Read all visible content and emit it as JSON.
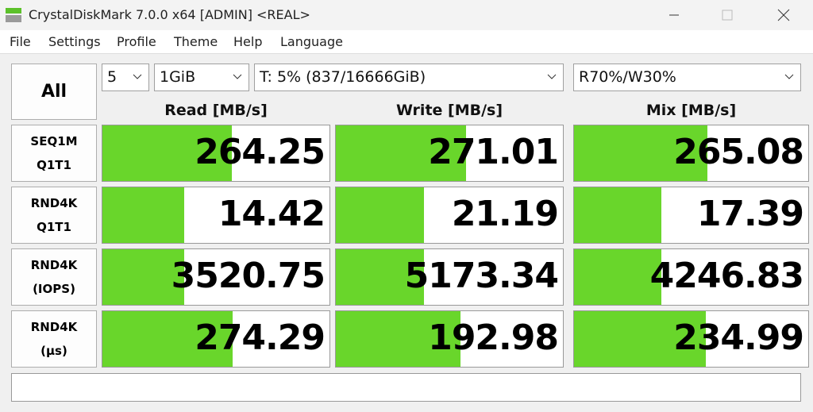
{
  "window": {
    "title": "CrystalDiskMark 7.0.0 x64 [ADMIN] <REAL>"
  },
  "menu": [
    "File",
    "Settings",
    "Profile",
    "Theme",
    "Help",
    "Language"
  ],
  "all_button": "All",
  "settings": {
    "count": "5",
    "size": "1GiB",
    "drive": "T: 5% (837/16666GiB)",
    "mix": "R70%/W30%"
  },
  "columns": [
    "Read [MB/s]",
    "Write [MB/s]",
    "Mix [MB/s]"
  ],
  "rows": [
    {
      "label": [
        "SEQ1M",
        "Q1T1"
      ],
      "values": [
        "264.25",
        "271.01",
        "265.08"
      ]
    },
    {
      "label": [
        "RND4K",
        "Q1T1"
      ],
      "values": [
        "14.42",
        "21.19",
        "17.39"
      ]
    },
    {
      "label": [
        "RND4K",
        "(IOPS)"
      ],
      "values": [
        "3520.75",
        "5173.34",
        "4246.83"
      ]
    },
    {
      "label": [
        "RND4K",
        "(μs)"
      ],
      "values": [
        "274.29",
        "192.98",
        "234.99"
      ]
    }
  ]
}
